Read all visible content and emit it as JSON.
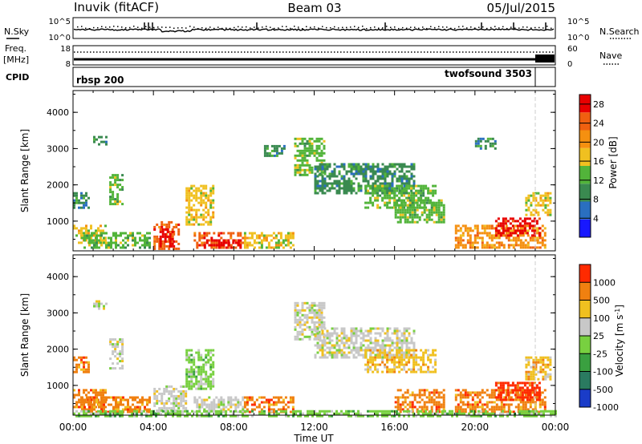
{
  "header": {
    "station": "Inuvik (fitACF)",
    "beam": "Beam 03",
    "date": "05/Jul/2015"
  },
  "ops_panels": {
    "nsky_label": "N.Sky",
    "nsky_ticks": [
      "10^5",
      "10^0"
    ],
    "nsearch_label": "N.Search",
    "nsearch_ticks": [
      "10^5",
      "10^0"
    ],
    "freq_label": "Freq.",
    "freq_unit": "[MHz]",
    "freq_ticks": [
      "18",
      "8"
    ],
    "nave_label": "Nave",
    "nave_ticks": [
      "60",
      "0"
    ],
    "cpid_label": "CPID",
    "programs": [
      {
        "name": "rbsp",
        "id": "200"
      },
      {
        "name": "twofsound",
        "id": "3503"
      }
    ]
  },
  "chart_data": [
    {
      "type": "heatmap",
      "title": "",
      "xlabel": "",
      "ylabel": "Slant Range [km]",
      "x_ticks": [
        "00:00",
        "04:00",
        "08:00",
        "12:00",
        "16:00",
        "20:00",
        "00:00"
      ],
      "x_hours": [
        0,
        4,
        8,
        12,
        16,
        20,
        24
      ],
      "ylim": [
        180,
        4600
      ],
      "y_ticks": [
        1000,
        2000,
        3000,
        4000
      ],
      "colorbar": {
        "label": "Power [dB]",
        "tick_labels": [
          "4",
          "8",
          "12",
          "16",
          "20",
          "24",
          "28"
        ],
        "tick_values": [
          4,
          8,
          12,
          16,
          20,
          24,
          28
        ],
        "range": [
          0,
          30
        ],
        "colors": [
          "#1818ff",
          "#2a6fc0",
          "#3a8a50",
          "#52b43a",
          "#f0c020",
          "#f59010",
          "#f06010",
          "#e80000"
        ]
      },
      "regions": [
        {
          "x": [
            1.0,
            1.6
          ],
          "y": [
            3100,
            3350
          ],
          "level": 2
        },
        {
          "x": [
            1.8,
            2.4
          ],
          "y": [
            1500,
            2300
          ],
          "level": 3
        },
        {
          "x": [
            0.0,
            0.8
          ],
          "y": [
            1400,
            1800
          ],
          "level": 2
        },
        {
          "x": [
            0.0,
            1.6
          ],
          "y": [
            400,
            900
          ],
          "level": 4
        },
        {
          "x": [
            0.4,
            3.8
          ],
          "y": [
            300,
            700
          ],
          "level": 3
        },
        {
          "x": [
            4.0,
            5.2
          ],
          "y": [
            250,
            1000
          ],
          "level": 6
        },
        {
          "x": [
            4.3,
            5.0
          ],
          "y": [
            300,
            800
          ],
          "level": 7
        },
        {
          "x": [
            5.6,
            7.0
          ],
          "y": [
            900,
            2000
          ],
          "level": 4
        },
        {
          "x": [
            6.0,
            8.5
          ],
          "y": [
            250,
            700
          ],
          "level": 6
        },
        {
          "x": [
            6.5,
            8.2
          ],
          "y": [
            250,
            500
          ],
          "level": 7
        },
        {
          "x": [
            8.5,
            11.0
          ],
          "y": [
            300,
            700
          ],
          "level": 4
        },
        {
          "x": [
            11.0,
            12.5
          ],
          "y": [
            2300,
            3300
          ],
          "level": 3
        },
        {
          "x": [
            12.0,
            17.0
          ],
          "y": [
            1800,
            2600
          ],
          "level": 2
        },
        {
          "x": [
            14.5,
            18.0
          ],
          "y": [
            1400,
            2000
          ],
          "level": 3
        },
        {
          "x": [
            16.0,
            18.5
          ],
          "y": [
            1000,
            1600
          ],
          "level": 3
        },
        {
          "x": [
            19.0,
            23.5
          ],
          "y": [
            300,
            900
          ],
          "level": 5
        },
        {
          "x": [
            21.0,
            23.2
          ],
          "y": [
            600,
            1100
          ],
          "level": 7
        },
        {
          "x": [
            22.5,
            23.8
          ],
          "y": [
            1200,
            1800
          ],
          "level": 4
        },
        {
          "x": [
            9.5,
            10.5
          ],
          "y": [
            2800,
            3100
          ],
          "level": 2
        },
        {
          "x": [
            20.0,
            21.0
          ],
          "y": [
            3000,
            3300
          ],
          "level": 2
        }
      ]
    },
    {
      "type": "heatmap",
      "title": "",
      "xlabel": "Time UT",
      "ylabel": "Slant Range [km]",
      "x_ticks": [
        "00:00",
        "04:00",
        "08:00",
        "12:00",
        "16:00",
        "20:00",
        "00:00"
      ],
      "x_hours": [
        0,
        4,
        8,
        12,
        16,
        20,
        24
      ],
      "ylim": [
        180,
        4600
      ],
      "y_ticks": [
        1000,
        2000,
        3000,
        4000
      ],
      "colorbar": {
        "label": "Velocity [m s^-1]",
        "tick_labels": [
          "1000",
          "500",
          "100",
          "25",
          "-25",
          "-100",
          "-500",
          "-1000"
        ],
        "range": [
          -1000,
          1000
        ],
        "colors": [
          "#1a3cc8",
          "#2a7a60",
          "#3aa040",
          "#78d040",
          "#c8c8c8",
          "#f0c020",
          "#f08010",
          "#ff2a00"
        ]
      },
      "regions": [
        {
          "x": [
            1.0,
            1.6
          ],
          "y": [
            3100,
            3350
          ],
          "level": 4
        },
        {
          "x": [
            1.8,
            2.4
          ],
          "y": [
            1500,
            2300
          ],
          "level": 4
        },
        {
          "x": [
            0.0,
            0.8
          ],
          "y": [
            1400,
            1800
          ],
          "level": 6
        },
        {
          "x": [
            0.0,
            1.6
          ],
          "y": [
            400,
            900
          ],
          "level": 6
        },
        {
          "x": [
            0.4,
            3.8
          ],
          "y": [
            300,
            700
          ],
          "level": 6
        },
        {
          "x": [
            4.0,
            5.6
          ],
          "y": [
            250,
            1000
          ],
          "level": 4
        },
        {
          "x": [
            5.6,
            7.0
          ],
          "y": [
            900,
            2000
          ],
          "level": 3
        },
        {
          "x": [
            6.0,
            8.5
          ],
          "y": [
            250,
            700
          ],
          "level": 4
        },
        {
          "x": [
            8.5,
            11.0
          ],
          "y": [
            300,
            700
          ],
          "level": 6
        },
        {
          "x": [
            11.0,
            12.5
          ],
          "y": [
            2300,
            3300
          ],
          "level": 4
        },
        {
          "x": [
            12.0,
            17.0
          ],
          "y": [
            1800,
            2600
          ],
          "level": 4
        },
        {
          "x": [
            14.5,
            18.0
          ],
          "y": [
            1400,
            2000
          ],
          "level": 5
        },
        {
          "x": [
            16.0,
            18.5
          ],
          "y": [
            300,
            900
          ],
          "level": 6
        },
        {
          "x": [
            19.0,
            23.5
          ],
          "y": [
            300,
            900
          ],
          "level": 6
        },
        {
          "x": [
            21.0,
            23.2
          ],
          "y": [
            600,
            1100
          ],
          "level": 7
        },
        {
          "x": [
            22.5,
            23.8
          ],
          "y": [
            1200,
            1800
          ],
          "level": 5
        },
        {
          "x": [
            0.0,
            24.0
          ],
          "y": [
            180,
            320
          ],
          "level": 3
        }
      ]
    }
  ]
}
